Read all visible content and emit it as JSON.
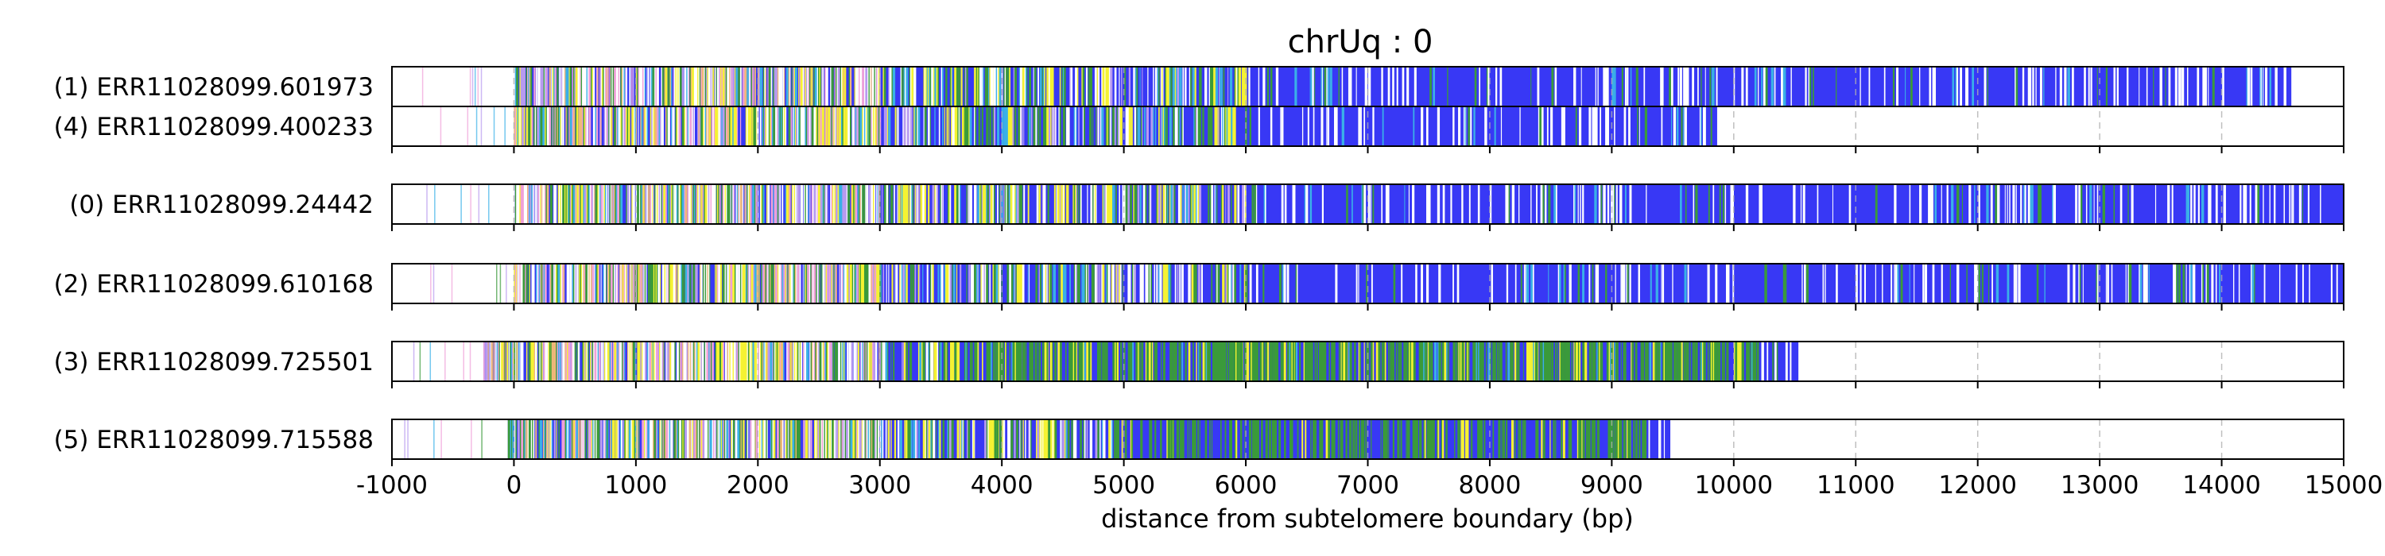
{
  "chart_data": {
    "type": "heatmap",
    "title": "chrUq : 0",
    "xlabel": "distance from subtelomere boundary (bp)",
    "ylabel": "",
    "xlim": [
      -1000,
      15000
    ],
    "xticks": [
      -1000,
      0,
      1000,
      2000,
      3000,
      4000,
      5000,
      6000,
      7000,
      8000,
      9000,
      10000,
      11000,
      12000,
      13000,
      14000,
      15000
    ],
    "xtick_labels": [
      "-1000",
      "0",
      "1000",
      "2000",
      "3000",
      "4000",
      "5000",
      "6000",
      "7000",
      "8000",
      "9000",
      "10000",
      "11000",
      "12000",
      "13000",
      "14000",
      "15000"
    ],
    "grid": "vertical dashed at x ticks",
    "colors": {
      "repeat_main": "#3838f5",
      "yellow": "#f5f232",
      "green": "#3a9a3a",
      "cyan": "#3ab0e8",
      "pink": "#f0a0d8",
      "violet": "#b89af0",
      "orange": "#f0b878",
      "white_gap": "#ffffff"
    },
    "groups": [
      {
        "reads": [
          {
            "label": "(1) ERR11028099.601973",
            "start": -1000,
            "dense_start": 0,
            "end": 14580,
            "profile": "mixed_then_blue"
          },
          {
            "label": "(4) ERR11028099.400233",
            "start": -1000,
            "dense_start": 0,
            "end": 9870,
            "profile": "mixed_then_blue"
          }
        ]
      },
      {
        "reads": [
          {
            "label": "(0) ERR11028099.24442",
            "start": -1000,
            "dense_start": 0,
            "end": 15000,
            "profile": "mixed_then_blue"
          }
        ]
      },
      {
        "reads": [
          {
            "label": "(2) ERR11028099.610168",
            "start": -1000,
            "dense_start": 0,
            "end": 15000,
            "profile": "mixed_then_blue"
          }
        ]
      },
      {
        "reads": [
          {
            "label": "(3) ERR11028099.725501",
            "start": -1000,
            "dense_start": -250,
            "end": 10530,
            "profile": "green_rich"
          }
        ]
      },
      {
        "reads": [
          {
            "label": "(5) ERR11028099.715588",
            "start": -1000,
            "dense_start": -50,
            "end": 9480,
            "profile": "green_mid"
          }
        ]
      }
    ]
  }
}
